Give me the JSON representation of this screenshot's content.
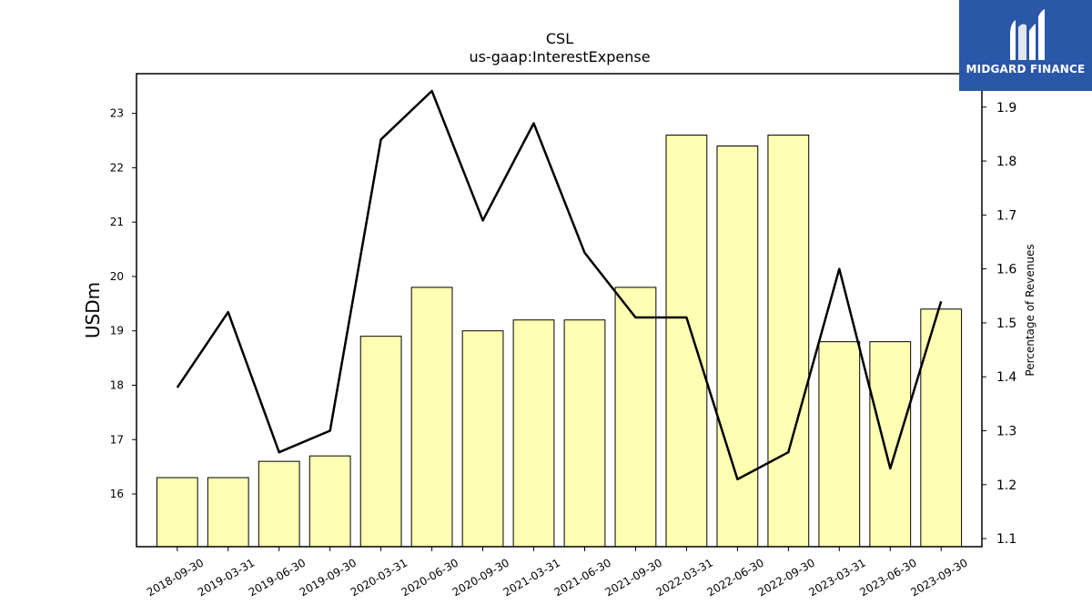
{
  "brand": {
    "name": "MIDGARD FINANCE",
    "logo_icon": "mf-monogram-icon",
    "bg_color": "#2b57a8"
  },
  "chart_data": {
    "type": "bar",
    "title": "CSL",
    "subtitle": "us-gaap:InterestExpense",
    "ylabel": "USDm",
    "y2label": "Percentage of Revenues",
    "categories": [
      "2018-09-30",
      "2019-03-31",
      "2019-06-30",
      "2019-09-30",
      "2020-03-31",
      "2020-06-30",
      "2020-09-30",
      "2021-03-31",
      "2021-06-30",
      "2021-09-30",
      "2022-03-31",
      "2022-06-30",
      "2022-09-30",
      "2023-03-31",
      "2023-06-30",
      "2023-09-30"
    ],
    "series": [
      {
        "type": "bar",
        "axis": "left",
        "values": [
          16.3,
          16.3,
          16.6,
          16.7,
          18.9,
          19.8,
          19.0,
          19.2,
          19.2,
          19.8,
          22.6,
          22.4,
          22.6,
          18.8,
          18.8,
          19.4
        ],
        "color": "#ffffb3"
      },
      {
        "type": "line",
        "axis": "right",
        "values": [
          1.38,
          1.52,
          1.26,
          1.3,
          1.84,
          1.93,
          1.69,
          1.87,
          1.63,
          1.51,
          1.51,
          1.21,
          1.26,
          1.6,
          1.23,
          1.54
        ],
        "color": "#000000"
      }
    ],
    "ylim": [
      15.03,
      23.73
    ],
    "y2lim": [
      1.085,
      1.962
    ],
    "yticks": [
      16,
      17,
      18,
      19,
      20,
      21,
      22,
      23
    ],
    "y2ticks": [
      1.1,
      1.2,
      1.3,
      1.4,
      1.5,
      1.6,
      1.7,
      1.8,
      1.9
    ],
    "grid": false
  }
}
